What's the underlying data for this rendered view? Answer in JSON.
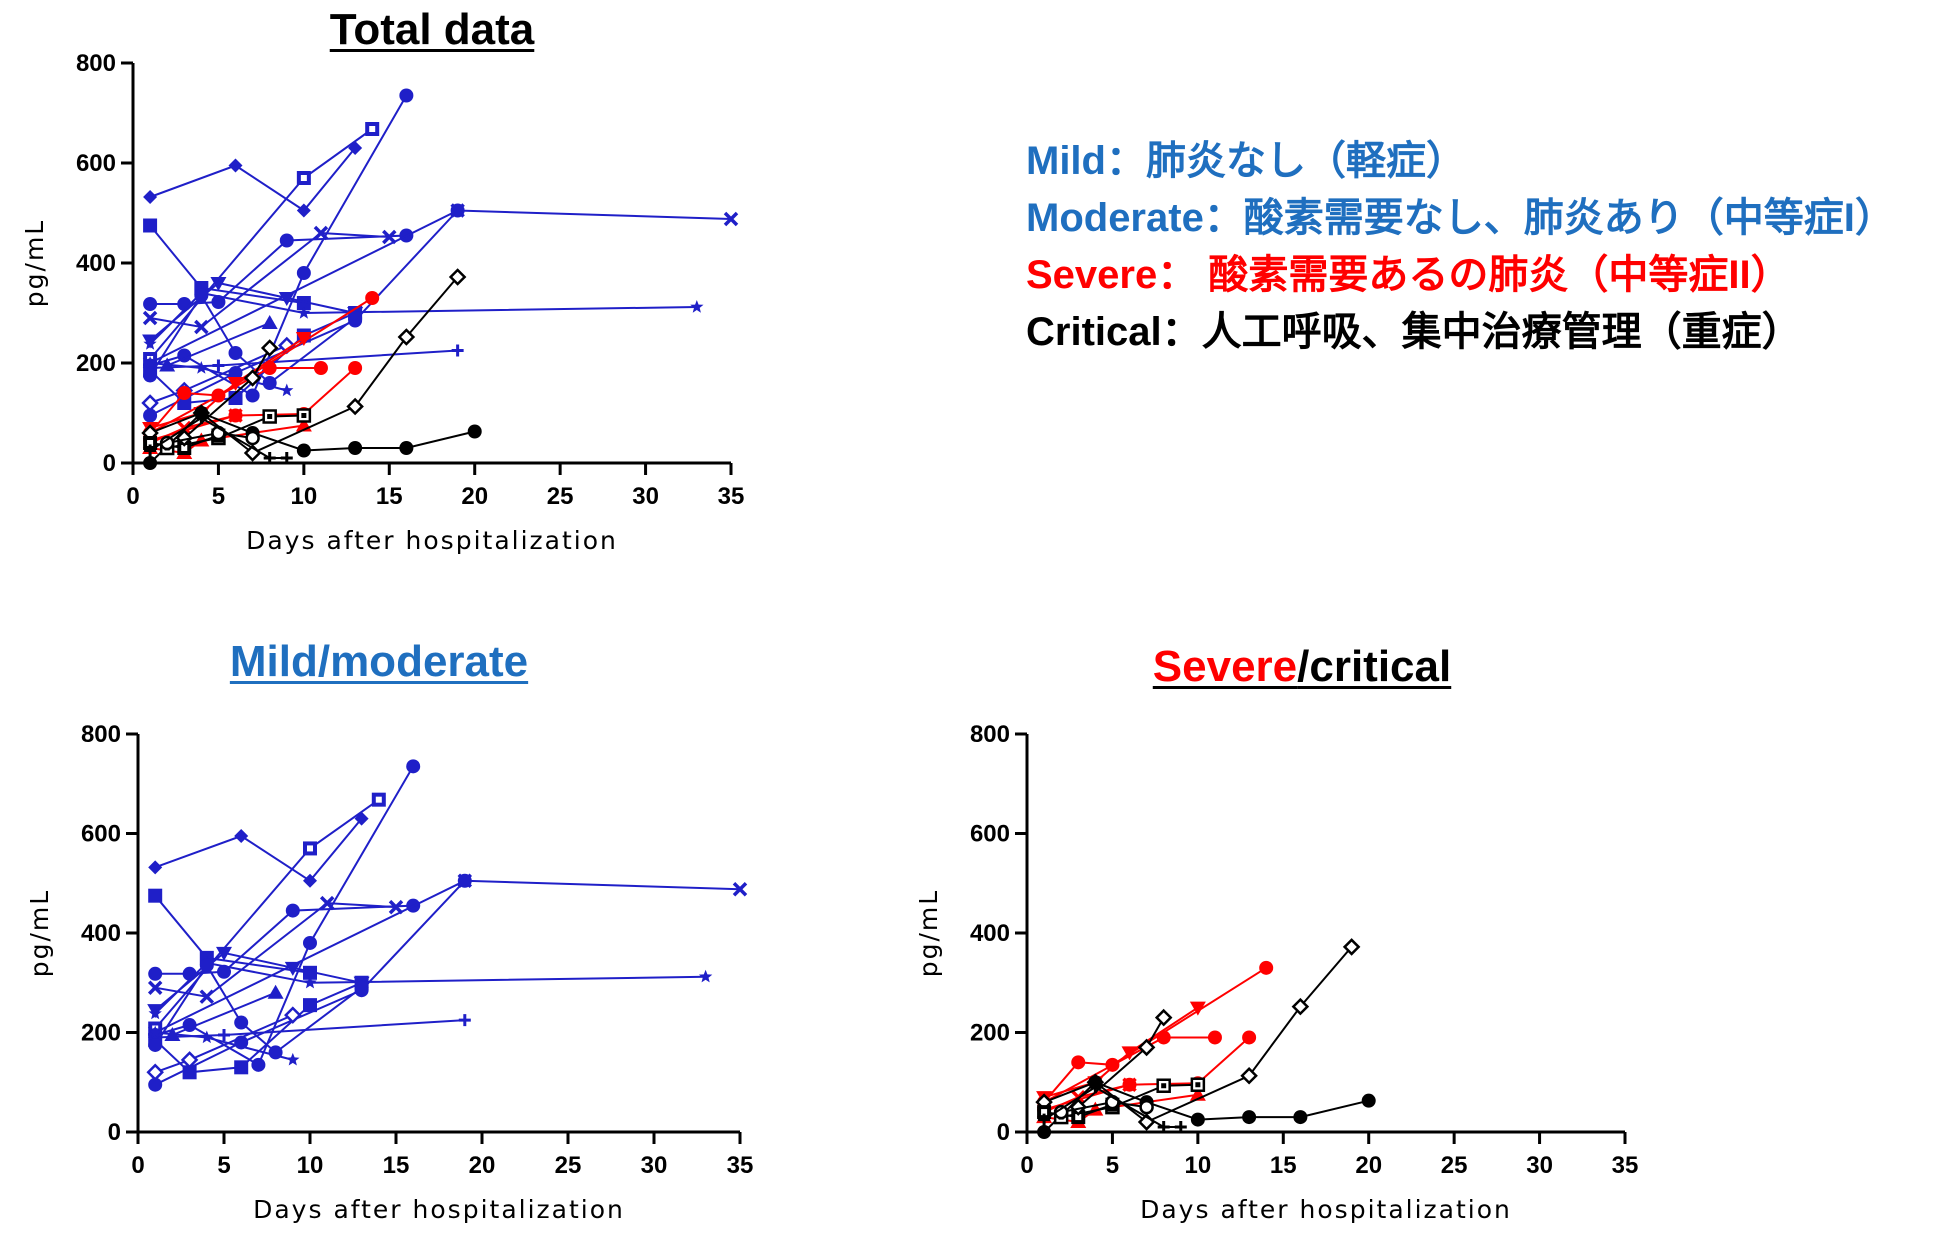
{
  "titles": {
    "total": "Total data",
    "mild": "Mild/moderate",
    "severe_part1": "Severe",
    "severe_part2": "/critical"
  },
  "legend": {
    "mild": "Mild：肺炎なし（軽症）",
    "moderate": "Moderate：酸素需要なし、肺炎あり（中等症I）",
    "severe": "Severe：  酸素需要あるの肺炎（中等症II）",
    "critical": "Critical：人工呼吸、集中治療管理（重症）"
  },
  "colors": {
    "mild_moderate": "#1f1fc8",
    "severe": "#ff0000",
    "critical": "#000000",
    "legend_blue": "#1f6fbf"
  },
  "chart_data": [
    {
      "type": "line",
      "title": "Total data",
      "xlabel": "Days after hospitalization",
      "ylabel": "pg/mL",
      "xlim": [
        0,
        35
      ],
      "ylim": [
        0,
        800
      ],
      "xticks": [
        0,
        5,
        10,
        15,
        20,
        25,
        30,
        35
      ],
      "yticks": [
        0,
        200,
        400,
        600,
        800
      ],
      "groups": [
        "mild_moderate",
        "severe",
        "critical"
      ]
    },
    {
      "type": "line",
      "title": "Mild/moderate",
      "xlabel": "Days after hospitalization",
      "ylabel": "pg/mL",
      "xlim": [
        0,
        35
      ],
      "ylim": [
        0,
        800
      ],
      "xticks": [
        0,
        5,
        10,
        15,
        20,
        25,
        30,
        35
      ],
      "yticks": [
        0,
        200,
        400,
        600,
        800
      ],
      "groups": [
        "mild_moderate"
      ]
    },
    {
      "type": "line",
      "title": "Severe/critical",
      "xlabel": "Days after hospitalization",
      "ylabel": "pg/mL",
      "xlim": [
        0,
        35
      ],
      "ylim": [
        0,
        800
      ],
      "xticks": [
        0,
        5,
        10,
        15,
        20,
        25,
        30,
        35
      ],
      "yticks": [
        0,
        200,
        400,
        600,
        800
      ],
      "groups": [
        "severe",
        "critical"
      ]
    }
  ],
  "series": {
    "mild_moderate": [
      {
        "marker": "diamond",
        "points": [
          [
            1,
            532
          ],
          [
            6,
            595
          ],
          [
            10,
            505
          ],
          [
            13,
            630
          ]
        ]
      },
      {
        "marker": "circle",
        "points": [
          [
            1,
            318
          ],
          [
            3,
            318
          ],
          [
            5,
            322
          ],
          [
            9,
            445
          ],
          [
            16,
            455
          ]
        ]
      },
      {
        "marker": "square",
        "points": [
          [
            1,
            475
          ],
          [
            4,
            350
          ],
          [
            10,
            320
          ]
        ]
      },
      {
        "marker": "x",
        "points": [
          [
            1,
            290
          ],
          [
            4,
            272
          ],
          [
            11,
            460
          ],
          [
            15,
            452
          ]
        ]
      },
      {
        "marker": "x",
        "points": [
          [
            1,
            200
          ],
          [
            19,
            505
          ],
          [
            35,
            488
          ]
        ]
      },
      {
        "marker": "triangle-down",
        "points": [
          [
            1,
            245
          ],
          [
            5,
            360
          ],
          [
            9,
            330
          ],
          [
            13,
            300
          ]
        ]
      },
      {
        "marker": "star",
        "points": [
          [
            1,
            238
          ],
          [
            4,
            340
          ],
          [
            10,
            300
          ],
          [
            33,
            312
          ]
        ]
      },
      {
        "marker": "square-dot",
        "points": [
          [
            1,
            208
          ],
          [
            10,
            570
          ],
          [
            14,
            668
          ]
        ]
      },
      {
        "marker": "circle",
        "points": [
          [
            1,
            195
          ],
          [
            3,
            215
          ],
          [
            7,
            135
          ],
          [
            10,
            380
          ],
          [
            16,
            735
          ]
        ]
      },
      {
        "marker": "plus",
        "points": [
          [
            1,
            190
          ],
          [
            5,
            195
          ],
          [
            19,
            225
          ]
        ]
      },
      {
        "marker": "square",
        "points": [
          [
            1,
            185
          ],
          [
            3,
            120
          ],
          [
            6,
            130
          ],
          [
            10,
            255
          ],
          [
            13,
            300
          ]
        ]
      },
      {
        "marker": "star",
        "points": [
          [
            1,
            200
          ],
          [
            4,
            190
          ],
          [
            9,
            145
          ]
        ]
      },
      {
        "marker": "triangle",
        "points": [
          [
            2,
            195
          ],
          [
            8,
            280
          ]
        ]
      },
      {
        "marker": "circle",
        "points": [
          [
            1,
            95
          ],
          [
            6,
            180
          ],
          [
            13,
            285
          ],
          [
            19,
            505
          ]
        ]
      },
      {
        "marker": "diamond-open",
        "points": [
          [
            1,
            120
          ],
          [
            3,
            145
          ],
          [
            9,
            235
          ]
        ]
      },
      {
        "marker": "circle",
        "points": [
          [
            1,
            175
          ],
          [
            4,
            335
          ],
          [
            6,
            220
          ],
          [
            8,
            160
          ],
          [
            13,
            290
          ]
        ]
      }
    ],
    "severe": [
      {
        "marker": "circle",
        "points": [
          [
            1,
            60
          ],
          [
            3,
            140
          ],
          [
            5,
            135
          ],
          [
            14,
            330
          ]
        ]
      },
      {
        "marker": "triangle-down",
        "points": [
          [
            1,
            70
          ],
          [
            4,
            100
          ],
          [
            6,
            160
          ],
          [
            10,
            250
          ]
        ]
      },
      {
        "marker": "circle",
        "points": [
          [
            1,
            45
          ],
          [
            6,
            95
          ],
          [
            10,
            98
          ],
          [
            13,
            190
          ]
        ]
      },
      {
        "marker": "circle",
        "points": [
          [
            1,
            60
          ],
          [
            8,
            190
          ],
          [
            11,
            190
          ]
        ]
      },
      {
        "marker": "triangle",
        "points": [
          [
            1,
            30
          ],
          [
            3,
            20
          ],
          [
            4,
            45
          ],
          [
            10,
            75
          ]
        ]
      },
      {
        "marker": "x",
        "points": [
          [
            1,
            40
          ],
          [
            3,
            70
          ],
          [
            6,
            95
          ]
        ]
      }
    ],
    "critical": [
      {
        "marker": "diamond-open",
        "points": [
          [
            1,
            60
          ],
          [
            4,
            100
          ],
          [
            7,
            20
          ],
          [
            13,
            113
          ],
          [
            16,
            252
          ],
          [
            19,
            372
          ]
        ]
      },
      {
        "marker": "circle",
        "points": [
          [
            1,
            0
          ],
          [
            4,
            100
          ],
          [
            7,
            60
          ],
          [
            10,
            25
          ],
          [
            13,
            30
          ],
          [
            16,
            30
          ],
          [
            20,
            63
          ]
        ]
      },
      {
        "marker": "square-open-dot",
        "points": [
          [
            2,
            30
          ],
          [
            5,
            50
          ],
          [
            8,
            93
          ],
          [
            10,
            95
          ]
        ]
      },
      {
        "marker": "square-dot",
        "points": [
          [
            1,
            40
          ],
          [
            3,
            30
          ],
          [
            5,
            55
          ]
        ]
      },
      {
        "marker": "diamond-open",
        "points": [
          [
            3,
            50
          ],
          [
            7,
            170
          ],
          [
            8,
            230
          ]
        ]
      },
      {
        "marker": "circle-open",
        "points": [
          [
            2,
            40
          ],
          [
            5,
            60
          ],
          [
            7,
            50
          ]
        ]
      },
      {
        "marker": "plus",
        "points": [
          [
            1,
            25
          ],
          [
            4,
            90
          ],
          [
            8,
            10
          ],
          [
            9,
            10
          ]
        ]
      }
    ]
  }
}
